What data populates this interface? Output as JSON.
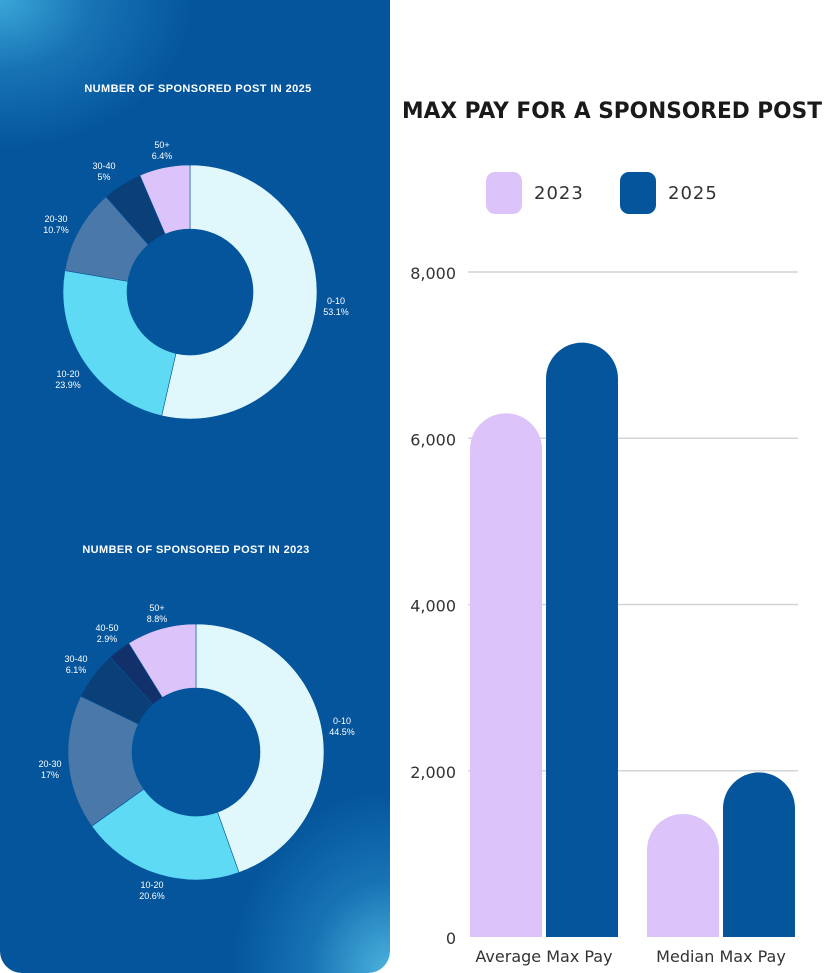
{
  "chart_data": [
    {
      "type": "pie",
      "title": "NUMBER OF SPONSORED POST IN 2025",
      "slices": [
        {
          "label": "0-10",
          "value": 53.1,
          "value_label": "53.1%",
          "color": "#e0f7fc"
        },
        {
          "label": "10-20",
          "value": 23.9,
          "value_label": "23.9%",
          "color": "#5fdaf5"
        },
        {
          "label": "20-30",
          "value": 10.7,
          "value_label": "10.7%",
          "color": "#4a78a8"
        },
        {
          "label": "30-40",
          "value": 5,
          "value_label": "5%",
          "color": "#0a3f78"
        },
        {
          "label": "50+",
          "value": 6.4,
          "value_label": "6.4%",
          "color": "#dcc3fa"
        }
      ]
    },
    {
      "type": "pie",
      "title": "NUMBER OF SPONSORED POST IN 2023",
      "slices": [
        {
          "label": "0-10",
          "value": 44.5,
          "value_label": "44.5%",
          "color": "#e0f7fc"
        },
        {
          "label": "10-20",
          "value": 20.6,
          "value_label": "20.6%",
          "color": "#5fdaf5"
        },
        {
          "label": "20-30",
          "value": 17,
          "value_label": "17%",
          "color": "#4a78a8"
        },
        {
          "label": "30-40",
          "value": 6.1,
          "value_label": "6.1%",
          "color": "#0a3f78"
        },
        {
          "label": "40-50",
          "value": 2.9,
          "value_label": "2.9%",
          "color": "#12306a"
        },
        {
          "label": "50+",
          "value": 8.8,
          "value_label": "8.8%",
          "color": "#dcc3fa"
        }
      ]
    },
    {
      "type": "bar",
      "title": "MAX PAY FOR A SPONSORED POST",
      "categories": [
        "Average Max Pay",
        "Median Max Pay"
      ],
      "series": [
        {
          "name": "2023",
          "values": [
            6300,
            1480
          ],
          "color": "#dcc3fa"
        },
        {
          "name": "2025",
          "values": [
            7150,
            1980
          ],
          "color": "#04559c"
        }
      ],
      "ylim": [
        0,
        8000
      ],
      "yticks": [
        "0",
        "2,000",
        "4,000",
        "6,000",
        "8,000"
      ],
      "ytick_values": [
        0,
        2000,
        4000,
        6000,
        8000
      ],
      "grid": true,
      "legend": "top"
    }
  ]
}
